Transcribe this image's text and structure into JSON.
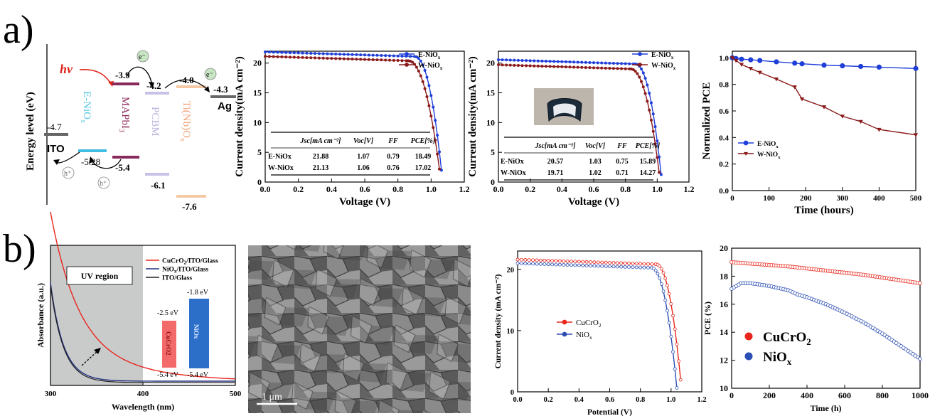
{
  "panel_labels": {
    "a": "a)",
    "b": "b)"
  },
  "energy_diagram": {
    "ylabel": "Energy level (eV)",
    "hv_label": "hν",
    "electron_label": "e⁻",
    "hole_label": "h⁺",
    "ito": {
      "label": "ITO",
      "level": "-4.7"
    },
    "enio": {
      "label": "E-NiO",
      "sub": "x",
      "level": "-5.28"
    },
    "mapbi": {
      "label": "MAPbI",
      "sub": "3",
      "top": "-3.9",
      "bottom": "-5.4"
    },
    "pcbm": {
      "label": "PCBM",
      "top": "-4.2",
      "bottom": "-6.1"
    },
    "tinb": {
      "label": "Ti(Nb)O",
      "sub": "x",
      "top": "-4.0",
      "bottom": "-7.6"
    },
    "ag": {
      "label": "Ag",
      "level": "-4.3"
    }
  },
  "jv_tables": {
    "t1": {
      "headers": [
        "Jsc[mA cm⁻²]",
        "Voc[V]",
        "FF",
        "PCE[%]"
      ],
      "rows": [
        {
          "name": "E-NiOx",
          "vals": [
            "21.88",
            "1.07",
            "0.79",
            "18.49"
          ]
        },
        {
          "name": "W-NiOx",
          "vals": [
            "21.13",
            "1.06",
            "0.76",
            "17.02"
          ]
        }
      ]
    },
    "t2": {
      "headers": [
        "Jsc[mA cm⁻²]",
        "Voc[V]",
        "FF",
        "PCE[%]"
      ],
      "rows": [
        {
          "name": "E-NiOx",
          "vals": [
            "20.57",
            "1.03",
            "0.75",
            "15.89"
          ]
        },
        {
          "name": "W-NiOx",
          "vals": [
            "19.71",
            "1.02",
            "0.71",
            "14.27"
          ]
        }
      ]
    }
  },
  "absorbance_extra": {
    "uv_label": "UV region",
    "cu_band": {
      "label": "CuCrO",
      "sub": "2",
      "top": "-2.5 eV",
      "bottom": "-5.4 eV"
    },
    "ni_band": {
      "label": "NiO",
      "sub": "x",
      "top": "-1.8 eV",
      "bottom": "-5.4 eV"
    }
  },
  "sem": {
    "scale_label": "1 μm"
  },
  "chart_data": [
    {
      "id": "jv1",
      "type": "line",
      "xlabel": "Voltage (V)",
      "ylabel": "Current density(mA cm⁻²)",
      "xlim": [
        0,
        1.2
      ],
      "ylim": [
        0,
        22
      ],
      "xticks": [
        0.0,
        0.2,
        0.4,
        0.6,
        0.8,
        1.0,
        1.2
      ],
      "yticks": [
        0,
        5,
        10,
        15,
        20
      ],
      "legend": "top-right",
      "series": [
        {
          "name": "E-NiOx",
          "color": "#1f3fd8",
          "marker": "circle",
          "jsc": 21.88,
          "voc": 1.07,
          "knee": 0.9
        },
        {
          "name": "W-NiOx",
          "color": "#8b1a1a",
          "marker": "circle",
          "jsc": 21.13,
          "voc": 1.06,
          "knee": 0.86
        }
      ]
    },
    {
      "id": "jv2",
      "type": "line",
      "xlabel": "Voltage (V)",
      "ylabel": "Current density(mA cm⁻²)",
      "xlim": [
        0,
        1.2
      ],
      "ylim": [
        0,
        22
      ],
      "xticks": [
        0.0,
        0.2,
        0.4,
        0.6,
        0.8,
        1.0,
        1.2
      ],
      "yticks": [
        0,
        5,
        10,
        15,
        20
      ],
      "legend": "top-right",
      "series": [
        {
          "name": "E-NiOx",
          "color": "#1f3fd8",
          "marker": "circle",
          "jsc": 20.57,
          "voc": 1.03,
          "knee": 0.86
        },
        {
          "name": "W-NiOx",
          "color": "#8b1a1a",
          "marker": "circle",
          "jsc": 19.71,
          "voc": 1.02,
          "knee": 0.83
        }
      ]
    },
    {
      "id": "stab1",
      "type": "line",
      "xlabel": "Time (hours)",
      "ylabel": "Normalized PCE",
      "xlim": [
        0,
        500
      ],
      "ylim": [
        0,
        1.05
      ],
      "xticks": [
        0,
        100,
        200,
        300,
        400,
        500
      ],
      "yticks": [
        0.0,
        0.2,
        0.4,
        0.6,
        0.8,
        1.0
      ],
      "legend": "lower-left",
      "series": [
        {
          "name": "E-NiOx",
          "color": "#1f3fd8",
          "marker": "circle",
          "x": [
            0,
            10,
            25,
            50,
            75,
            120,
            170,
            190,
            250,
            300,
            350,
            400,
            500
          ],
          "y": [
            1.0,
            0.995,
            0.99,
            0.985,
            0.98,
            0.97,
            0.96,
            0.955,
            0.945,
            0.94,
            0.935,
            0.93,
            0.92
          ]
        },
        {
          "name": "W-NiOx",
          "color": "#8b1a1a",
          "marker": "triangle-down",
          "x": [
            0,
            10,
            25,
            50,
            75,
            120,
            170,
            190,
            250,
            300,
            350,
            400,
            500
          ],
          "y": [
            1.0,
            0.98,
            0.95,
            0.92,
            0.89,
            0.84,
            0.78,
            0.69,
            0.63,
            0.56,
            0.52,
            0.46,
            0.42
          ]
        }
      ]
    },
    {
      "id": "abs",
      "type": "line",
      "xlabel": "Wavelength (nm)",
      "ylabel": "Absorbance (a.u.)",
      "xlim": [
        300,
        500
      ],
      "xticks": [
        300,
        400,
        500
      ],
      "legend": "top-right",
      "series": [
        {
          "name": "CuCrO2/ITO/Glass",
          "color": "#e8261c"
        },
        {
          "name": "NiOx/ITO/Glass",
          "color": "#23307e"
        },
        {
          "name": "ITO/Glass",
          "color": "#222222"
        }
      ]
    },
    {
      "id": "jv3",
      "type": "line",
      "xlabel": "Potential (V)",
      "ylabel": "Current density (mA cm⁻²)",
      "xlim": [
        0,
        1.2
      ],
      "ylim": [
        0,
        23
      ],
      "xticks": [
        0.0,
        0.2,
        0.4,
        0.6,
        0.8,
        1.0,
        1.2
      ],
      "yticks": [
        0,
        10,
        20
      ],
      "legend": "center-left",
      "series": [
        {
          "name": "CuCrO2",
          "color": "#e8261c",
          "marker": "circle",
          "jsc": 21.6,
          "voc": 1.07,
          "knee": 0.9
        },
        {
          "name": "NiOx",
          "color": "#2c4fb5",
          "marker": "circle",
          "jsc": 21.0,
          "voc": 1.04,
          "knee": 0.87
        }
      ]
    },
    {
      "id": "stab2",
      "type": "scatter",
      "xlabel": "Time (h)",
      "ylabel": "PCE (%)",
      "xlim": [
        0,
        1000
      ],
      "ylim": [
        10,
        20
      ],
      "xticks": [
        0,
        200,
        400,
        600,
        800,
        1000
      ],
      "yticks": [
        10,
        12,
        14,
        16,
        18,
        20
      ],
      "legend": "center-left",
      "series": [
        {
          "name": "CuCrO2",
          "color": "#e8261c",
          "marker": "circle",
          "x": [
            0,
            100,
            200,
            300,
            400,
            500,
            600,
            700,
            800,
            900,
            1000
          ],
          "y": [
            19.0,
            18.9,
            18.8,
            18.7,
            18.55,
            18.4,
            18.25,
            18.1,
            17.9,
            17.7,
            17.5
          ]
        },
        {
          "name": "NiOx",
          "color": "#2c4fb5",
          "marker": "circle",
          "x": [
            0,
            50,
            100,
            200,
            300,
            350,
            400,
            500,
            600,
            700,
            800,
            900,
            1000
          ],
          "y": [
            17.1,
            17.5,
            17.5,
            17.3,
            17.0,
            16.7,
            16.5,
            16.0,
            15.4,
            14.7,
            13.9,
            13.0,
            12.1
          ]
        }
      ]
    }
  ]
}
